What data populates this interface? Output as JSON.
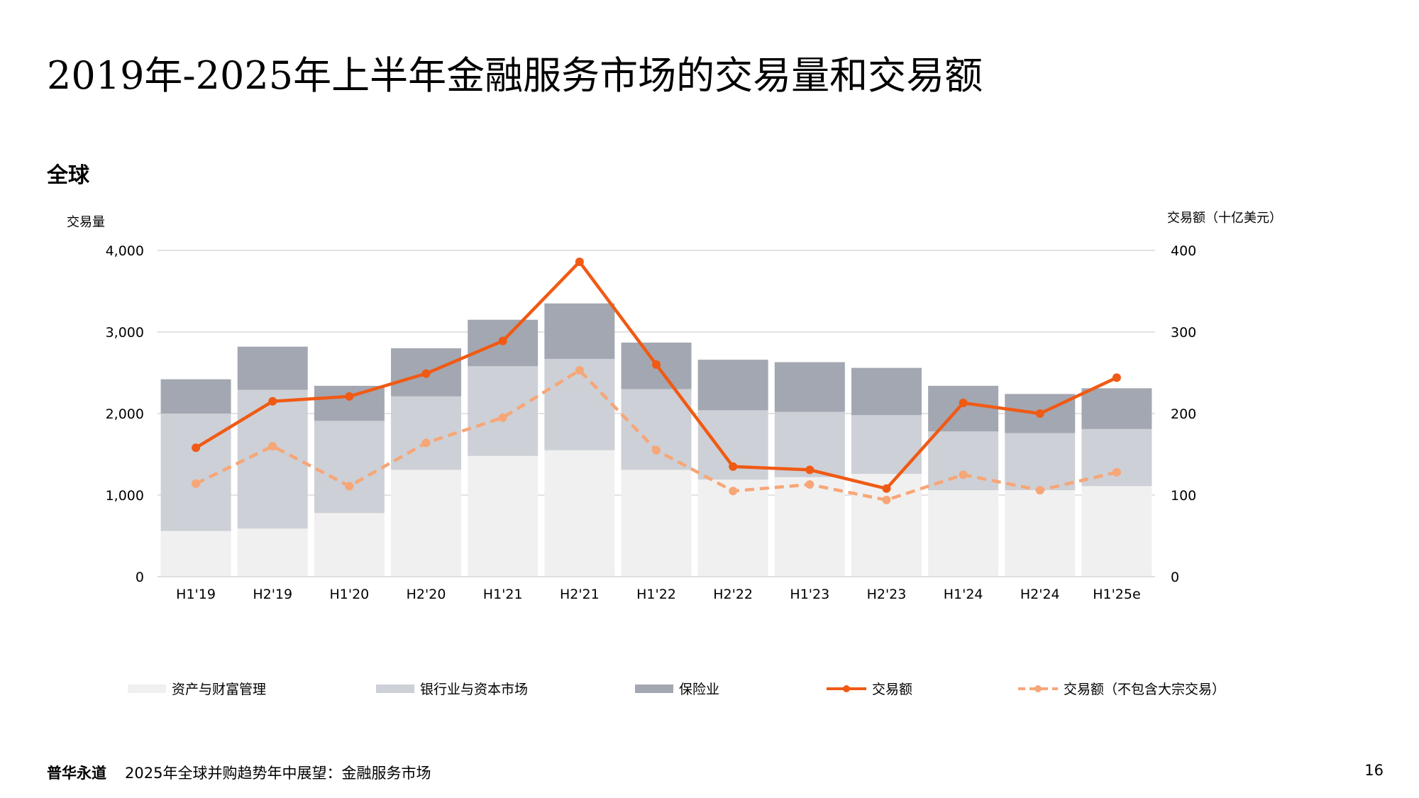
{
  "title": "2019年-2025年上半年金融服务市场的交易量和交易额",
  "region": "全球",
  "footer": {
    "brand": "普华永道",
    "text": "2025年全球并购趋势年中展望：金融服务市场",
    "page": "16"
  },
  "colors": {
    "asset_wealth": "#f0f0f0",
    "banking": "#cdd0d6",
    "insurance": "#a3a7b1",
    "value": "#f05a14",
    "value_excl": "#f7a677",
    "grid": "#d9d9d9"
  },
  "chart_data": {
    "type": "bar",
    "stacked": true,
    "categories": [
      "H1'19",
      "H2'19",
      "H1'20",
      "H2'20",
      "H1'21",
      "H2'21",
      "H1'22",
      "H2'22",
      "H1'23",
      "H2'23",
      "H1'24",
      "H2'24",
      "H1'25e"
    ],
    "left_axis": {
      "label": "交易量",
      "ylim": [
        0,
        4000
      ],
      "ticks": [
        "0",
        "1,000",
        "2,000",
        "3,000",
        "4,000"
      ]
    },
    "right_axis": {
      "label": "交易额（十亿美元）",
      "ylim": [
        0,
        400
      ],
      "ticks": [
        "0",
        "100",
        "200",
        "300",
        "400"
      ]
    },
    "series": [
      {
        "name": "资产与财富管理",
        "kind": "bar",
        "axis": "left",
        "values": [
          560,
          590,
          780,
          1310,
          1480,
          1550,
          1310,
          1190,
          1220,
          1260,
          1060,
          1060,
          1110
        ]
      },
      {
        "name": "银行业与资本市场",
        "kind": "bar",
        "axis": "left",
        "values": [
          1440,
          1700,
          1130,
          900,
          1100,
          1120,
          990,
          850,
          800,
          720,
          720,
          700,
          700
        ]
      },
      {
        "name": "保险业",
        "kind": "bar",
        "axis": "left",
        "values": [
          420,
          530,
          430,
          590,
          570,
          680,
          570,
          620,
          610,
          580,
          560,
          480,
          500
        ]
      },
      {
        "name": "交易额",
        "kind": "line",
        "axis": "right",
        "values": [
          158,
          215,
          221,
          249,
          289,
          386,
          260,
          135,
          131,
          108,
          213,
          200,
          244
        ]
      },
      {
        "name": "交易额（不包含大宗交易）",
        "kind": "line-dashed",
        "axis": "right",
        "values": [
          114,
          160,
          111,
          164,
          195,
          253,
          155,
          105,
          113,
          94,
          125,
          106,
          128
        ]
      }
    ],
    "grid": true,
    "legend_position": "bottom"
  }
}
